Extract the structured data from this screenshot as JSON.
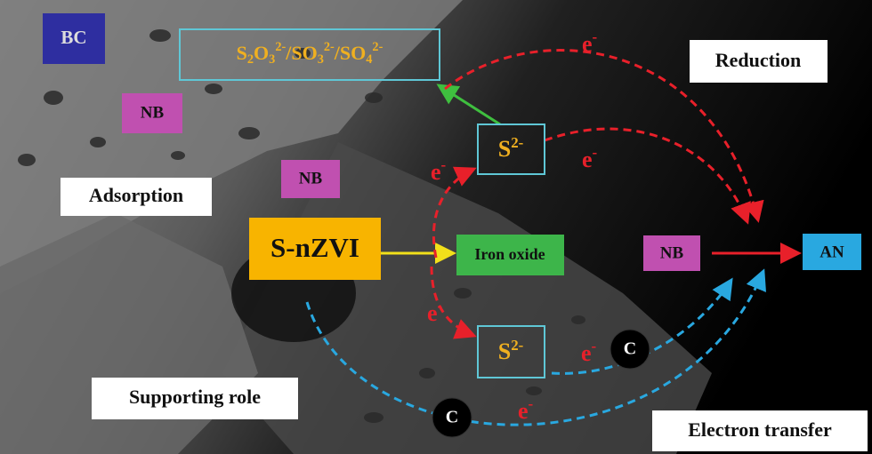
{
  "labels": {
    "bc": "BC",
    "formula": [
      "S",
      "2",
      "O",
      "3",
      "2-",
      "/SO",
      "3",
      "2-",
      "/SO",
      "4",
      "2-"
    ],
    "reduction": "Reduction",
    "nb": [
      "NB",
      "NB",
      "NB"
    ],
    "sulfide": [
      {
        "base": "S",
        "charge": "2-"
      },
      {
        "base": "S",
        "charge": "2-"
      }
    ],
    "adsorption": "Adsorption",
    "s_nzvi": "S-nZVI",
    "iron_oxide": "Iron oxide",
    "an": "AN",
    "carbon": [
      "C",
      "C"
    ],
    "supporting_role": "Supporting role",
    "electron_transfer": "Electron transfer",
    "electrons": [
      {
        "base": "e",
        "charge": "-"
      },
      {
        "base": "e",
        "charge": "-"
      },
      {
        "base": "e",
        "charge": "-"
      },
      {
        "base": "e",
        "charge": "-"
      },
      {
        "base": "e",
        "charge": "-"
      },
      {
        "base": "e",
        "charge": "-"
      }
    ]
  }
}
